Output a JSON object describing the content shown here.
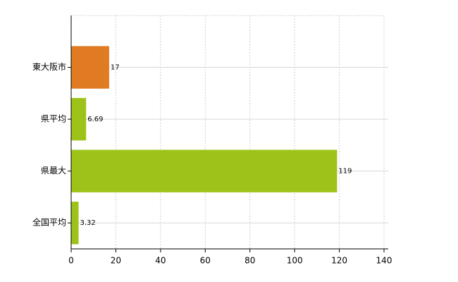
{
  "chart_data": {
    "type": "hbar",
    "categories": [
      "東大阪市",
      "県平均",
      "県最大",
      "全国平均"
    ],
    "values": [
      17,
      6.69,
      119,
      3.32
    ],
    "colors": [
      "#e07b24",
      "#9dc31a",
      "#9dc31a",
      "#9dc31a"
    ],
    "xlim": [
      0,
      140
    ],
    "xticks": [
      0,
      20,
      40,
      60,
      80,
      100,
      120,
      140
    ],
    "grid": true
  }
}
